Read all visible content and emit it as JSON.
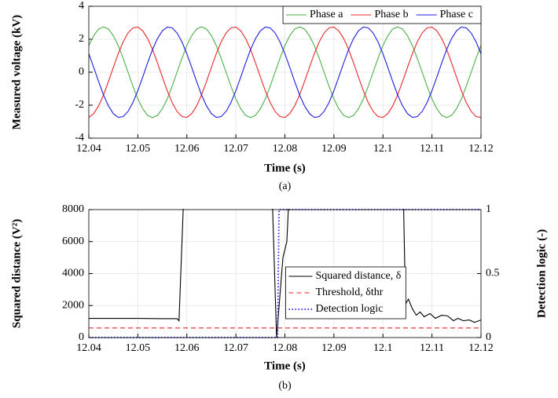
{
  "chart_data": [
    {
      "type": "line",
      "x": [
        12.04,
        12.041,
        12.042,
        12.043,
        12.044,
        12.045,
        12.046,
        12.047,
        12.048,
        12.049,
        12.05,
        12.051,
        12.052,
        12.053,
        12.054,
        12.055,
        12.056,
        12.057,
        12.058,
        12.059,
        12.06,
        12.061,
        12.062,
        12.063,
        12.064,
        12.065,
        12.066,
        12.067,
        12.068,
        12.069,
        12.07,
        12.071,
        12.072,
        12.073,
        12.074,
        12.075,
        12.076,
        12.077,
        12.078,
        12.079,
        12.08,
        12.081,
        12.082,
        12.083,
        12.084,
        12.085,
        12.086,
        12.087,
        12.088,
        12.089,
        12.09,
        12.091,
        12.092,
        12.093,
        12.094,
        12.095,
        12.096,
        12.097,
        12.098,
        12.099,
        12.1,
        12.101,
        12.102,
        12.103,
        12.104,
        12.105,
        12.106,
        12.107,
        12.108,
        12.109,
        12.11,
        12.111,
        12.112,
        12.113,
        12.114,
        12.115,
        12.116,
        12.117,
        12.118,
        12.119,
        12.12
      ],
      "series": [
        {
          "name": "Phase a",
          "color": "#4daf4a",
          "values": [
            1.62,
            2.22,
            2.62,
            2.75,
            2.62,
            2.22,
            1.62,
            0.85,
            0,
            -0.85,
            -1.62,
            -2.22,
            -2.62,
            -2.75,
            -2.62,
            -2.22,
            -1.62,
            -0.85,
            0,
            0.85,
            1.62,
            2.22,
            2.62,
            2.75,
            2.62,
            2.22,
            1.62,
            0.85,
            0,
            -0.85,
            -1.62,
            -2.22,
            -2.62,
            -2.75,
            -2.62,
            -2.22,
            -1.62,
            -0.85,
            0,
            0.85,
            1.62,
            2.22,
            2.62,
            2.75,
            2.62,
            2.22,
            1.62,
            0.85,
            0,
            -0.85,
            -1.62,
            -2.22,
            -2.62,
            -2.75,
            -2.62,
            -2.22,
            -1.62,
            -0.85,
            0,
            0.85,
            1.62,
            2.22,
            2.62,
            2.75,
            2.62,
            2.22,
            1.62,
            0.85,
            0,
            -0.85,
            -1.62,
            -2.22,
            -2.62,
            -2.75,
            -2.62,
            -2.22,
            -1.62,
            -0.85,
            0,
            0.85,
            1.62
          ]
        },
        {
          "name": "Phase b",
          "color": "#e8292c",
          "values": [
            -2.74,
            -2.51,
            -2.04,
            -1.38,
            -0.57,
            0.29,
            1.12,
            1.84,
            2.38,
            2.69,
            2.74,
            2.51,
            2.04,
            1.38,
            0.57,
            -0.29,
            -1.12,
            -1.84,
            -2.38,
            -2.69,
            -2.74,
            -2.51,
            -2.04,
            -1.38,
            -0.57,
            0.29,
            1.12,
            1.84,
            2.38,
            2.69,
            2.74,
            2.51,
            2.04,
            1.38,
            0.57,
            -0.29,
            -1.12,
            -1.84,
            -2.38,
            -2.69,
            -2.74,
            -2.51,
            -2.04,
            -1.38,
            -0.57,
            0.29,
            1.12,
            1.84,
            2.38,
            2.69,
            2.74,
            2.51,
            2.04,
            1.38,
            0.57,
            -0.29,
            -1.12,
            -1.84,
            -2.38,
            -2.69,
            -2.74,
            -2.51,
            -2.04,
            -1.38,
            -0.57,
            0.29,
            1.12,
            1.84,
            2.38,
            2.69,
            2.74,
            2.51,
            2.04,
            1.38,
            0.57,
            -0.29,
            -1.12,
            -1.84,
            -2.38,
            -2.69,
            -2.74
          ]
        },
        {
          "name": "Phase c",
          "color": "#1f1fe0",
          "values": [
            1.12,
            0.29,
            -0.57,
            -1.38,
            -2.04,
            -2.51,
            -2.74,
            -2.69,
            -2.38,
            -1.84,
            -1.12,
            -0.29,
            0.57,
            1.38,
            2.04,
            2.51,
            2.74,
            2.69,
            2.38,
            1.84,
            1.12,
            0.29,
            -0.57,
            -1.38,
            -2.04,
            -2.51,
            -2.74,
            -2.69,
            -2.38,
            -1.84,
            -1.12,
            -0.29,
            0.57,
            1.38,
            2.04,
            2.51,
            2.74,
            2.69,
            2.38,
            1.84,
            1.12,
            0.29,
            -0.57,
            -1.38,
            -2.04,
            -2.51,
            -2.74,
            -2.69,
            -2.38,
            -1.84,
            -1.12,
            -0.29,
            0.57,
            1.38,
            2.04,
            2.51,
            2.74,
            2.69,
            2.38,
            1.84,
            1.12,
            0.29,
            -0.57,
            -1.38,
            -2.04,
            -2.51,
            -2.74,
            -2.69,
            -2.38,
            -1.84,
            -1.12,
            -0.29,
            0.57,
            1.38,
            2.04,
            2.51,
            2.74,
            2.69,
            2.38,
            1.84,
            1.12
          ]
        }
      ],
      "xlim": [
        12.04,
        12.12
      ],
      "xticks": [
        12.04,
        12.05,
        12.06,
        12.07,
        12.08,
        12.09,
        12.1,
        12.11,
        12.12
      ],
      "ylim": [
        -4,
        4
      ],
      "yticks": [
        -4,
        -2,
        0,
        2,
        4
      ],
      "xlabel": "Time (s)",
      "ylabel": "Measured voltage (kV)",
      "caption": "(a)",
      "grid": true,
      "legend": "upper right"
    },
    {
      "type": "line",
      "series": [
        {
          "name": "Squared distance, δ",
          "color": "#000000",
          "style": "solid",
          "x": [
            12.04,
            12.045,
            12.05,
            12.055,
            12.058,
            12.0584,
            12.0595,
            12.0773,
            12.0783,
            12.0796,
            12.0804,
            12.081,
            12.1041,
            12.1046,
            12.1052,
            12.106,
            12.1068,
            12.1076,
            12.1084,
            12.1096,
            12.1107,
            12.112,
            12.1132,
            12.1144,
            12.1153,
            12.1164,
            12.1176,
            12.1187,
            12.12
          ],
          "values": [
            1200,
            1200,
            1200,
            1180,
            1180,
            1050,
            10000,
            10000,
            0,
            5000,
            6000,
            10000,
            10000,
            2100,
            2400,
            1800,
            1400,
            1600,
            1300,
            1500,
            1200,
            1400,
            1350,
            1050,
            1200,
            1050,
            1100,
            950,
            1100
          ]
        },
        {
          "name": "Threshold, δthr",
          "color": "#e8292c",
          "style": "dashed",
          "x": [
            12.04,
            12.12
          ],
          "values": [
            600,
            600
          ]
        },
        {
          "name": "Detection logic",
          "color": "#1f1fe0",
          "style": "dotted",
          "axis": "y2",
          "x": [
            12.04,
            12.0785,
            12.0788,
            12.12
          ],
          "values": [
            0,
            0,
            1,
            1
          ]
        }
      ],
      "xlim": [
        12.04,
        12.12
      ],
      "xticks": [
        12.04,
        12.05,
        12.06,
        12.07,
        12.08,
        12.09,
        12.1,
        12.11,
        12.12
      ],
      "ylim": [
        0,
        8000
      ],
      "yticks": [
        0,
        2000,
        4000,
        6000,
        8000
      ],
      "y2lim": [
        0,
        1
      ],
      "y2ticks": [
        0,
        0.5,
        1
      ],
      "xlabel": "Time (s)",
      "ylabel": "Squared distance (V²)",
      "y2label": "Detection logic (-)",
      "caption": "(b)",
      "grid": true,
      "legend": "lower center"
    }
  ]
}
